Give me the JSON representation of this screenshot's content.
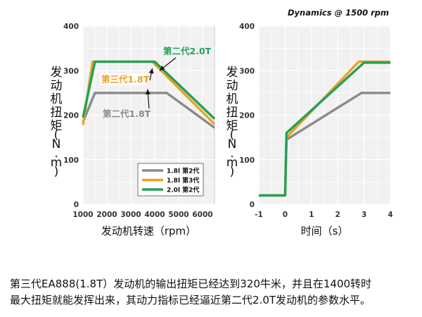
{
  "chart_data": [
    {
      "type": "line",
      "xlabel": "发动机转速（rpm）",
      "ylabel": "发动机扭矩(N.m)",
      "xlim": [
        1000,
        6500
      ],
      "ylim": [
        0,
        400
      ],
      "xticks": [
        1000,
        2000,
        3000,
        4000,
        5000,
        6000
      ],
      "yticks": [
        0,
        100,
        200,
        300,
        400
      ],
      "grid": true,
      "legend_position": "bottom-right",
      "series": [
        {
          "name": "1.8l 第2代",
          "color": "#8a8a8a",
          "points": [
            [
              1000,
              185
            ],
            [
              1500,
              250
            ],
            [
              4500,
              250
            ],
            [
              6500,
              172
            ]
          ]
        },
        {
          "name": "1.8l 第3代",
          "color": "#f0a020",
          "points": [
            [
              1000,
              178
            ],
            [
              1400,
              320
            ],
            [
              3900,
              320
            ],
            [
              6500,
              180
            ]
          ]
        },
        {
          "name": "2.0l 第2代",
          "color": "#22a05a",
          "points": [
            [
              1000,
              195
            ],
            [
              1500,
              320
            ],
            [
              4000,
              320
            ],
            [
              6500,
              192
            ]
          ]
        }
      ],
      "annotations": [
        {
          "text": "第二代2.0T",
          "color": "#22a05a",
          "target": [
            4200,
            300
          ]
        },
        {
          "text": "第三代1.8T",
          "color": "#f0a020",
          "target": [
            3900,
            305
          ]
        },
        {
          "text": "第二代1.8T",
          "color": "#8a8a8a",
          "target": [
            3700,
            258
          ]
        }
      ]
    },
    {
      "type": "line",
      "title": "Dynamics @ 1500 rpm",
      "xlabel": "时间（s）",
      "ylabel": "发动机扭矩(N.m)",
      "xlim": [
        -1,
        4
      ],
      "ylim": [
        0,
        400
      ],
      "xticks": [
        -1,
        0,
        1,
        2,
        3,
        4
      ],
      "yticks": [
        0,
        100,
        200,
        300,
        400
      ],
      "grid": true,
      "series": [
        {
          "name": "1.8l 第2代",
          "color": "#8a8a8a",
          "points": [
            [
              -1,
              20
            ],
            [
              0,
              20
            ],
            [
              0.05,
              145
            ],
            [
              2.9,
              250
            ],
            [
              4,
              250
            ]
          ]
        },
        {
          "name": "1.8l 第3代",
          "color": "#f0a020",
          "points": [
            [
              -1,
              20
            ],
            [
              0,
              20
            ],
            [
              0.05,
              150
            ],
            [
              2.8,
              320
            ],
            [
              4,
              320
            ]
          ]
        },
        {
          "name": "2.0l 第2代",
          "color": "#22a05a",
          "points": [
            [
              -1,
              20
            ],
            [
              0,
              20
            ],
            [
              0.05,
              160
            ],
            [
              3.0,
              318
            ],
            [
              4,
              318
            ]
          ]
        }
      ]
    }
  ],
  "caption": {
    "line1": "第三代EA888(1.8T）发动机的输出扭矩已经达到320牛米，并且在1400转时",
    "line2": "最大扭矩就能发挥出来，其动力指标已经逼近第二代2.0T发动机的参数水平。"
  }
}
